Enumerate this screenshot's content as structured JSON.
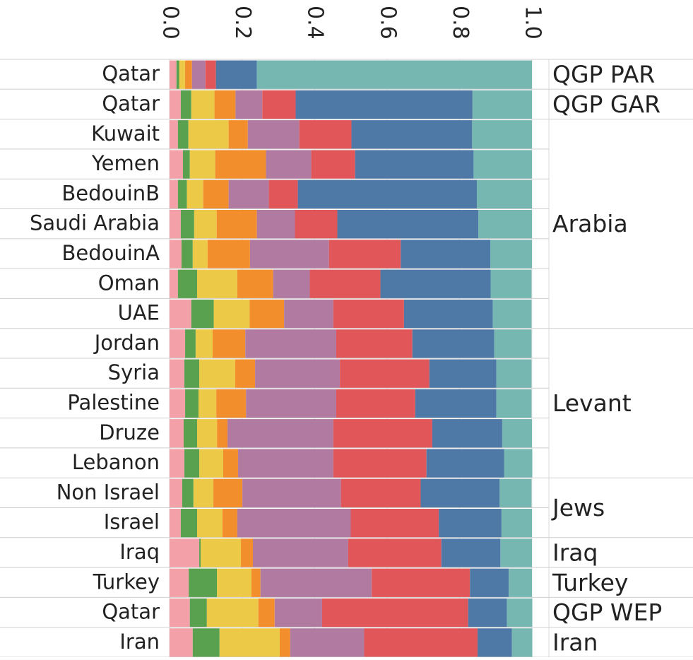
{
  "chart_data": {
    "type": "bar",
    "orientation": "horizontal",
    "stacked": true,
    "xlim": [
      0,
      1
    ],
    "x_ticks": [
      "0.0",
      "0.2",
      "0.4",
      "0.6",
      "0.8",
      "1.0"
    ],
    "x_tick_values": [
      0,
      0.2,
      0.4,
      0.6,
      0.8,
      1.0
    ],
    "grid": true,
    "legend": "none",
    "categories": [
      "Qatar",
      "Qatar",
      "Kuwait",
      "Yemen",
      "BedouinB",
      "Saudi Arabia",
      "BedouinA",
      "Oman",
      "UAE",
      "Jordan",
      "Syria",
      "Palestine",
      "Druze",
      "Lebanon",
      "Non Israel",
      "Israel",
      "Iraq",
      "Turkey",
      "Qatar",
      "Iran"
    ],
    "groups": [
      {
        "label": "QGP PAR",
        "rows": [
          0,
          0
        ]
      },
      {
        "label": "QGP GAR",
        "rows": [
          1,
          1
        ]
      },
      {
        "label": "Arabia",
        "rows": [
          2,
          8
        ]
      },
      {
        "label": "Levant",
        "rows": [
          9,
          13
        ]
      },
      {
        "label": "Jews",
        "rows": [
          14,
          15
        ]
      },
      {
        "label": "Iraq",
        "rows": [
          16,
          16
        ]
      },
      {
        "label": "Turkey",
        "rows": [
          17,
          17
        ]
      },
      {
        "label": "QGP WEP",
        "rows": [
          18,
          18
        ]
      },
      {
        "label": "Iran",
        "rows": [
          19,
          19
        ]
      }
    ],
    "series": [
      {
        "color": "#f4a0a8",
        "values": [
          0.019,
          0.031,
          0.023,
          0.037,
          0.023,
          0.031,
          0.033,
          0.023,
          0.06,
          0.043,
          0.041,
          0.043,
          0.039,
          0.041,
          0.035,
          0.031,
          0.082,
          0.053,
          0.056,
          0.064
        ]
      },
      {
        "color": "#59a14f",
        "values": [
          0.008,
          0.029,
          0.029,
          0.019,
          0.025,
          0.037,
          0.031,
          0.053,
          0.062,
          0.029,
          0.041,
          0.037,
          0.037,
          0.041,
          0.031,
          0.045,
          0.004,
          0.078,
          0.047,
          0.074
        ]
      },
      {
        "color": "#edc948",
        "values": [
          0.016,
          0.064,
          0.111,
          0.07,
          0.045,
          0.062,
          0.041,
          0.111,
          0.099,
          0.047,
          0.099,
          0.049,
          0.055,
          0.066,
          0.055,
          0.07,
          0.111,
          0.095,
          0.142,
          0.166
        ]
      },
      {
        "color": "#f28e2b",
        "values": [
          0.019,
          0.058,
          0.053,
          0.14,
          0.07,
          0.111,
          0.117,
          0.099,
          0.095,
          0.09,
          0.055,
          0.082,
          0.029,
          0.041,
          0.08,
          0.041,
          0.033,
          0.025,
          0.045,
          0.029
        ]
      },
      {
        "color": "#b07aa1",
        "values": [
          0.037,
          0.074,
          0.142,
          0.125,
          0.111,
          0.105,
          0.218,
          0.101,
          0.136,
          0.251,
          0.234,
          0.249,
          0.292,
          0.263,
          0.272,
          0.313,
          0.263,
          0.307,
          0.131,
          0.204
        ]
      },
      {
        "color": "#e15759",
        "values": [
          0.029,
          0.092,
          0.144,
          0.121,
          0.08,
          0.117,
          0.198,
          0.195,
          0.195,
          0.21,
          0.247,
          0.218,
          0.273,
          0.257,
          0.22,
          0.243,
          0.257,
          0.271,
          0.403,
          0.313
        ]
      },
      {
        "color": "#4e79a7",
        "values": [
          0.113,
          0.488,
          0.333,
          0.327,
          0.494,
          0.389,
          0.247,
          0.304,
          0.245,
          0.226,
          0.185,
          0.224,
          0.193,
          0.214,
          0.218,
          0.173,
          0.163,
          0.107,
          0.107,
          0.095
        ]
      },
      {
        "color": "#76b7b2",
        "values": [
          0.759,
          0.164,
          0.165,
          0.161,
          0.152,
          0.148,
          0.115,
          0.113,
          0.107,
          0.103,
          0.097,
          0.097,
          0.082,
          0.078,
          0.088,
          0.084,
          0.087,
          0.064,
          0.07,
          0.056
        ]
      }
    ]
  }
}
